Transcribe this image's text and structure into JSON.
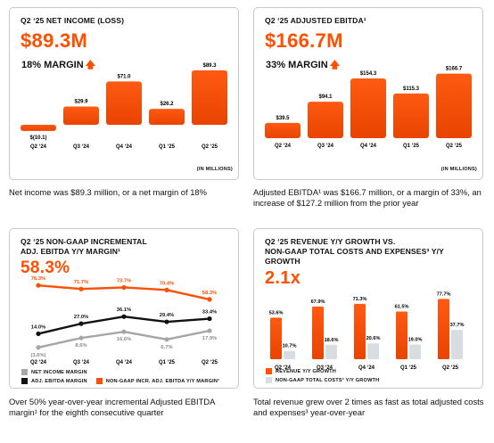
{
  "colors": {
    "orange": "#ff4f00",
    "black": "#111111",
    "gray": "#a6a6a6",
    "lightgray": "#d7dde0"
  },
  "panels": {
    "net_income": {
      "title": "Q2 ‘25 NET INCOME (LOSS)",
      "value": "$89.3M",
      "margin": "18% MARGIN",
      "units": "(IN MILLIONS)",
      "caption": "Net income was $89.3 million, or a net margin of 18%"
    },
    "ebitda": {
      "title": "Q2 ‘25 ADJUSTED EBITDA¹",
      "value": "$166.7M",
      "margin": "33% MARGIN",
      "units": "(IN MILLIONS)",
      "caption": "Adjusted EBITDA¹ was $166.7 million, or a margin of 33%, an increase of $127.2 million from the prior year"
    },
    "incremental": {
      "title_line1": "Q2 ‘25 NON-GAAP INCREMENTAL",
      "title_line2": "ADJ. EBITDA Y/Y MARGIN¹",
      "value": "58.3%",
      "legend": [
        "NET INCOME MARGIN",
        "ADJ. EBITDA MARGIN",
        "NON-GAAP INCR. ADJ. EBITDA Y/Y MARGIN¹"
      ],
      "caption": "Over 50% year-over-year incremental Adjusted EBITDA margin¹ for the eighth consecutive quarter"
    },
    "growth": {
      "title_line1": "Q2 ‘25 REVENUE Y/Y GROWTH VS.",
      "title_line2": "NON-GAAP TOTAL COSTS AND EXPENSES³ Y/Y",
      "title_line3": "GROWTH",
      "value": "2.1x",
      "legend": [
        "REVENUE Y/Y GROWTH",
        "NON-GAAP TOTAL COSTS³ Y/Y GROWTH"
      ],
      "caption": "Total revenue grew over 2 times as fast as total adjusted costs and expenses³ year-over-year"
    }
  },
  "chart_data": [
    {
      "type": "bar",
      "title": "Q2 ‘25 NET INCOME (LOSS)",
      "categories": [
        "Q2 ‘24",
        "Q3 ‘24",
        "Q4 ‘24",
        "Q1 ‘25",
        "Q2 ‘25"
      ],
      "values": [
        -10.1,
        29.9,
        71.0,
        26.2,
        89.3
      ],
      "labels": [
        "$(10.1)",
        "$29.9",
        "$71.0",
        "$26.2",
        "$89.3"
      ],
      "ylabel": "(IN MILLIONS)",
      "ylim": [
        -12,
        95
      ]
    },
    {
      "type": "bar",
      "title": "Q2 ‘25 ADJUSTED EBITDA¹",
      "categories": [
        "Q2 ‘24",
        "Q3 ‘24",
        "Q4 ‘24",
        "Q1 ‘25",
        "Q2 ‘25"
      ],
      "values": [
        39.5,
        94.1,
        154.3,
        115.3,
        166.7
      ],
      "labels": [
        "$39.5",
        "$94.1",
        "$154.3",
        "$115.3",
        "$166.7"
      ],
      "ylabel": "(IN MILLIONS)",
      "ylim": [
        0,
        175
      ]
    },
    {
      "type": "line",
      "title": "Q2 ‘25 NON-GAAP INCREMENTAL ADJ. EBITDA Y/Y MARGIN¹",
      "categories": [
        "Q2 ‘24",
        "Q3 ‘24",
        "Q4 ‘24",
        "Q1 ‘25",
        "Q2 ‘25"
      ],
      "series": [
        {
          "name": "NON-GAAP INCR. ADJ. EBITDA Y/Y MARGIN¹",
          "values": [
            76.3,
            71.7,
            73.7,
            70.4,
            58.3
          ],
          "labels": [
            "76.3%",
            "71.7%",
            "73.7%",
            "70.4%",
            "58.3%"
          ]
        },
        {
          "name": "ADJ. EBITDA MARGIN",
          "values": [
            14.0,
            27.0,
            36.1,
            29.4,
            33.4
          ],
          "labels": [
            "14.0%",
            "27.0%",
            "36.1%",
            "29.4%",
            "33.4%"
          ]
        },
        {
          "name": "NET INCOME MARGIN",
          "values": [
            -3.6,
            8.6,
            16.6,
            6.7,
            17.9
          ],
          "labels": [
            "(3.6%)",
            "8.6%",
            "16.6%",
            "6.7%",
            "17.9%"
          ]
        }
      ]
    },
    {
      "type": "bar",
      "title": "Q2 ‘25 REVENUE Y/Y GROWTH VS. NON-GAAP TOTAL COSTS AND EXPENSES³ Y/Y GROWTH",
      "categories": [
        "Q2 ‘24",
        "Q3 ‘24",
        "Q4 ‘24",
        "Q1 ‘25",
        "Q2 ‘25"
      ],
      "series": [
        {
          "name": "REVENUE Y/Y GROWTH",
          "values": [
            53.6,
            67.9,
            71.3,
            61.5,
            77.7
          ],
          "labels": [
            "53.6%",
            "67.9%",
            "71.3%",
            "61.5%",
            "77.7%"
          ]
        },
        {
          "name": "NON-GAAP TOTAL COSTS³ Y/Y GROWTH",
          "values": [
            10.7,
            18.6,
            20.6,
            19.0,
            37.7
          ],
          "labels": [
            "10.7%",
            "18.6%",
            "20.6%",
            "19.0%",
            "37.7%"
          ]
        }
      ],
      "ylim": [
        0,
        85
      ]
    }
  ]
}
